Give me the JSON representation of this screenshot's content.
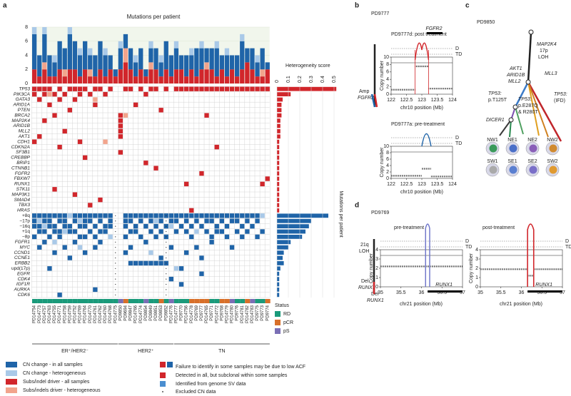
{
  "panel_a": {
    "label": "a",
    "bar_title": "Mutations per patient",
    "ylim": [
      0,
      8
    ],
    "yticks": [
      0,
      2,
      4,
      6,
      8
    ],
    "het_label": "Heterogeneity score",
    "het_lim": [
      0,
      0.6
    ],
    "het_ticks": [
      0,
      0.1,
      0.2,
      0.3,
      0.4,
      0.5
    ],
    "side_title": "Mutations per patient",
    "patients": [
      "PD14754",
      "PD14773",
      "PD14757",
      "PD14763",
      "PD14755",
      "PD14771",
      "PD14758",
      "PD14759",
      "PD14752",
      "PD14769",
      "PD14764",
      "PD14770",
      "PD14761",
      "PD14762",
      "PD14760",
      "PD14768",
      "PD14775",
      "PD9850",
      "PD9694",
      "PD9847",
      "PD14766",
      "PD14774",
      "PD9854",
      "PD9849",
      "PD9851",
      "PD9853",
      "PD9852",
      "PD14776",
      "PD14777",
      "PD9770",
      "PD14756",
      "PD14778",
      "PD9769",
      "PD9777",
      "PD14765",
      "PD9771",
      "PD14772",
      "PD9768",
      "PD14779",
      "PD14780",
      "PD9776",
      "PD14781",
      "PD14782",
      "PD14783",
      "PD9775",
      "PD9773",
      "PD9774"
    ],
    "series": [
      {
        "name": "CN change - in all samples",
        "color": "#1f64a8",
        "values": [
          5,
          3,
          4,
          3,
          2,
          4,
          3,
          5,
          4,
          3,
          4,
          2,
          3,
          4,
          3,
          2,
          1,
          3,
          2,
          3,
          2,
          3,
          1,
          2,
          3,
          2,
          4,
          3,
          3,
          2,
          3,
          2,
          4,
          3,
          2,
          3,
          4,
          2,
          3,
          2,
          3,
          4,
          2,
          3,
          2,
          3,
          1
        ]
      },
      {
        "name": "CN change - heterogeneous",
        "color": "#a9c9e8",
        "values": [
          1,
          0,
          1,
          0,
          1,
          0,
          0,
          1,
          0,
          1,
          0,
          1,
          0,
          0,
          1,
          0,
          0,
          1,
          0,
          0,
          1,
          0,
          0,
          1,
          0,
          1,
          0,
          0,
          1,
          0,
          0,
          1,
          0,
          1,
          0,
          0,
          1,
          0,
          1,
          0,
          0,
          1,
          0,
          0,
          1,
          0,
          0
        ]
      },
      {
        "name": "Subs/indel driver - all samples",
        "color": "#d1262b",
        "values": [
          2,
          1,
          2,
          1,
          1,
          2,
          1,
          2,
          2,
          1,
          2,
          1,
          1,
          2,
          1,
          2,
          1,
          2,
          3,
          2,
          1,
          2,
          1,
          2,
          2,
          1,
          2,
          1,
          2,
          2,
          1,
          2,
          1,
          2,
          2,
          2,
          1,
          2,
          1,
          2,
          1,
          2,
          3,
          2,
          1,
          1,
          2
        ]
      },
      {
        "name": "Subs/indels driver - heterogeneous",
        "color": "#f2a48c",
        "values": [
          0,
          0,
          1,
          0,
          0,
          0,
          1,
          0,
          0,
          0,
          0,
          1,
          0,
          0,
          0,
          0,
          0,
          0,
          2,
          0,
          0,
          0,
          0,
          1,
          0,
          0,
          0,
          0,
          0,
          0,
          0,
          0,
          0,
          0,
          1,
          0,
          0,
          0,
          0,
          0,
          0,
          0,
          0,
          0,
          0,
          1,
          0
        ]
      }
    ],
    "genes": [
      "TP53",
      "PIK3CA",
      "GATA3",
      "ARID1A",
      "PTEN",
      "BRCA2",
      "MAP2K4",
      "ARID1B",
      "MLL2",
      "AKT1",
      "CDH1",
      "CDKN2A",
      "SF3B1",
      "CREBBP",
      "BRIP1",
      "CTNNB1",
      "FGFR2",
      "FBXW7",
      "RUNX1",
      "STK11",
      "MAP3K1",
      "SMAD4",
      "TBX3",
      "HRAS",
      "+8q",
      "−17p",
      "−16q",
      "+1q",
      "−8p",
      "FGFR1",
      "MYC",
      "CCND1",
      "CCNE1",
      "ERBB2",
      "upd(17p)",
      "EGFR",
      "CDK4",
      "IGF1R",
      "AURKA",
      "CDK6"
    ],
    "side_values": [
      0.52,
      0.12,
      0.05,
      0.04,
      0.04,
      0.04,
      0.03,
      0.03,
      0.03,
      0.03,
      0.02,
      0.02,
      0.02,
      0.02,
      0.02,
      0.02,
      0.02,
      0.02,
      0.02,
      0.02,
      0.02,
      0.02,
      0.02,
      0.02,
      0.45,
      0.3,
      0.28,
      0.25,
      0.22,
      0.12,
      0.1,
      0.06,
      0.05,
      0.06,
      0.03,
      0.02,
      0.02,
      0.02,
      0.02,
      0.02
    ],
    "side_color": [
      "#d1262b",
      "#d1262b",
      "#d1262b",
      "#d1262b",
      "#d1262b",
      "#d1262b",
      "#d1262b",
      "#d1262b",
      "#d1262b",
      "#d1262b",
      "#d1262b",
      "#d1262b",
      "#d1262b",
      "#d1262b",
      "#d1262b",
      "#d1262b",
      "#d1262b",
      "#d1262b",
      "#d1262b",
      "#d1262b",
      "#d1262b",
      "#d1262b",
      "#d1262b",
      "#d1262b",
      "#1f64a8",
      "#1f64a8",
      "#1f64a8",
      "#1f64a8",
      "#1f64a8",
      "#1f64a8",
      "#1f64a8",
      "#1f64a8",
      "#1f64a8",
      "#1f64a8",
      "#1f64a8",
      "#1f64a8",
      "#1f64a8",
      "#1f64a8",
      "#1f64a8",
      "#1f64a8"
    ],
    "cells_all": [
      [
        0,
        1,
        2,
        3,
        5,
        7,
        8,
        9,
        10,
        12,
        13,
        15,
        18,
        19,
        21,
        23,
        24,
        26,
        28,
        29,
        30,
        31,
        32,
        33,
        34,
        35,
        36,
        37,
        38,
        39,
        40,
        41,
        42,
        43,
        44,
        45,
        46
      ],
      [
        0,
        2,
        4,
        6,
        9,
        11,
        14,
        22
      ],
      [
        1,
        5,
        8
      ],
      [
        3,
        12,
        20
      ],
      [
        7,
        25
      ],
      [
        4,
        17,
        34
      ],
      [
        2,
        17
      ],
      [
        17
      ],
      [
        6,
        17
      ],
      [
        1,
        17
      ],
      [
        0,
        9
      ],
      [
        5,
        36
      ],
      [
        17
      ],
      [
        10
      ],
      [
        22
      ],
      [
        24
      ],
      [
        33
      ],
      [
        46
      ],
      [
        30,
        45
      ],
      [
        4
      ],
      [
        8
      ],
      [
        13
      ],
      [
        11
      ],
      [
        31
      ],
      [
        0,
        1,
        2,
        3,
        4,
        5,
        6,
        8,
        9,
        10,
        11,
        12,
        13,
        14,
        15,
        18,
        19,
        20,
        21,
        22,
        23,
        24,
        25,
        26,
        27,
        28,
        29,
        30,
        31,
        32,
        33,
        34,
        35,
        36,
        37,
        38,
        39,
        40,
        41,
        42,
        43,
        44
      ],
      [
        0,
        2,
        3,
        5,
        6,
        8,
        10,
        11,
        13,
        15,
        18,
        19,
        21,
        23,
        25,
        27,
        28,
        30,
        32,
        34,
        35,
        37,
        39,
        40,
        42,
        44
      ],
      [
        0,
        1,
        3,
        4,
        6,
        7,
        9,
        10,
        12,
        14,
        15,
        18,
        20,
        22,
        24,
        26,
        29,
        31,
        33,
        36,
        38,
        41,
        43
      ],
      [
        1,
        2,
        4,
        5,
        7,
        8,
        11,
        13,
        14,
        19,
        20,
        23,
        25,
        28,
        30,
        34,
        36,
        37,
        40,
        42,
        45
      ],
      [
        0,
        3,
        5,
        9,
        10,
        12,
        18,
        21,
        24,
        26,
        31,
        35,
        38,
        41,
        44
      ],
      [
        2,
        8,
        13,
        22,
        35
      ],
      [
        1,
        6,
        12,
        19,
        27,
        32,
        39
      ],
      [
        4,
        10,
        18,
        30
      ],
      [
        7,
        25,
        33
      ],
      [
        19,
        20,
        21,
        22,
        23,
        24,
        25,
        26
      ],
      [
        3,
        29
      ],
      [
        33
      ],
      [
        27
      ],
      [
        29
      ],
      [
        12
      ],
      [
        5
      ]
    ],
    "cells_het": [
      [],
      [
        3
      ],
      [
        12
      ],
      [],
      [],
      [
        18
      ],
      [],
      [],
      [],
      [],
      [
        14
      ],
      [],
      [],
      [],
      [],
      [],
      [],
      [],
      [],
      [],
      [],
      [],
      [],
      [],
      [
        7,
        45
      ],
      [
        1,
        9,
        24
      ],
      [
        2,
        27
      ],
      [
        6,
        32
      ],
      [
        15
      ],
      [
        4
      ],
      [
        9
      ],
      [
        23
      ],
      [],
      [],
      [
        28
      ],
      [],
      [],
      [],
      [],
      []
    ],
    "excluded_cols": [
      16,
      26
    ],
    "status_title": "Status",
    "status": [
      {
        "name": "RD",
        "color": "#1a9a7a"
      },
      {
        "name": "pCR",
        "color": "#d8702a"
      },
      {
        "name": "pS",
        "color": "#7a6fb5"
      }
    ],
    "patient_status": [
      0,
      0,
      0,
      0,
      0,
      0,
      0,
      0,
      0,
      0,
      0,
      0,
      0,
      0,
      0,
      0,
      0,
      2,
      1,
      0,
      0,
      0,
      2,
      0,
      0,
      1,
      0,
      2,
      0,
      0,
      0,
      1,
      1,
      1,
      1,
      0,
      0,
      1,
      1,
      2,
      0,
      0,
      1,
      2,
      0,
      0,
      1
    ],
    "groups": [
      {
        "name": "ER⁺/HER2⁻",
        "start": 0,
        "end": 16
      },
      {
        "name": "HER2⁺",
        "start": 17,
        "end": 27
      },
      {
        "name": "TN",
        "start": 28,
        "end": 46
      }
    ]
  },
  "legend": {
    "marker_a": "A",
    "marker_s": "S",
    "marker_g": "G",
    "failure": "Failure to identify in some samples may be due to low ACF",
    "subclonal": "Detected in all, but subclonal within some samples",
    "sv": "Identified from genome SV data",
    "excluded": "Excluded CN data"
  },
  "panel_b": {
    "label": "b",
    "sample": "PD9777",
    "post_title": "PD9777d: post treatment",
    "pre_title": "PD9777a: pre-treatment",
    "gene": "FGFR2",
    "d": "D",
    "td": "TD",
    "amp": "Amp",
    "amp_gene": "FGFR2",
    "ylabel": "Copy number",
    "xlabel": "chr10 position (Mb)",
    "xlim": [
      122,
      124
    ],
    "xticks": [
      122,
      122.5,
      123,
      123.5,
      124
    ],
    "ylim": [
      0,
      10
    ],
    "yticks": [
      0,
      2,
      4,
      6,
      8,
      10
    ],
    "post_segments": [
      {
        "start": 122,
        "end": 122.78,
        "cn": 1.2
      },
      {
        "start": 122.78,
        "end": 123.22,
        "cn": 7.5
      },
      {
        "start": 123.22,
        "end": 124,
        "cn": 1.5
      }
    ],
    "pre_segments": [
      {
        "start": 122,
        "end": 123,
        "cn": 0.8
      },
      {
        "start": 123,
        "end": 123.3,
        "cn": 3
      },
      {
        "start": 123.3,
        "end": 124,
        "cn": 0.6
      }
    ]
  },
  "panel_c": {
    "label": "c",
    "sample": "PD9850",
    "root": "MAP2K4",
    "root_2": "17p",
    "root_3": "LOH",
    "akt1": "AKT1",
    "arid1b": "ARID1B",
    "mll2": "MLL2",
    "mll3": "MLL3",
    "tp53a": "TP53:",
    "tp53a_2": "p.T125T",
    "tp53b": "TP53:",
    "tp53b_2": "p.E287Q",
    "tp53b_3": "& R280T",
    "tp53c": "TP53:",
    "tp53c_2": "(IFD)",
    "dicer1": "DICER1",
    "regions": [
      "NW1",
      "NE1",
      "NE2",
      "NW2",
      "SW1",
      "SE1",
      "SE2",
      "SW2"
    ]
  },
  "panel_d": {
    "label": "d",
    "sample": "PD9769",
    "pre_title": "pre-treatment",
    "post_title": "post-treatment",
    "d": "D",
    "td": "TD",
    "loh": "21q",
    "loh_2": "LOH",
    "del": "Del",
    "del_gene": "RUNX1",
    "gene": "RUNX1",
    "ylabel": "Copy number",
    "xlabel": "chr21 position (Mb)",
    "xlim": [
      35,
      37
    ],
    "xticks": [
      35,
      35.5,
      36,
      36.5,
      37
    ],
    "ylim": [
      0,
      4
    ],
    "yticks": [
      0,
      1,
      2,
      3,
      4
    ],
    "pre_segments": [
      {
        "start": 35,
        "end": 37,
        "cn": 2.2
      }
    ],
    "post_segments": [
      {
        "start": 35,
        "end": 36.15,
        "cn": 1.9
      },
      {
        "start": 36.15,
        "end": 36.3,
        "cn": 1.2
      },
      {
        "start": 36.3,
        "end": 37,
        "cn": 1.9
      }
    ]
  }
}
